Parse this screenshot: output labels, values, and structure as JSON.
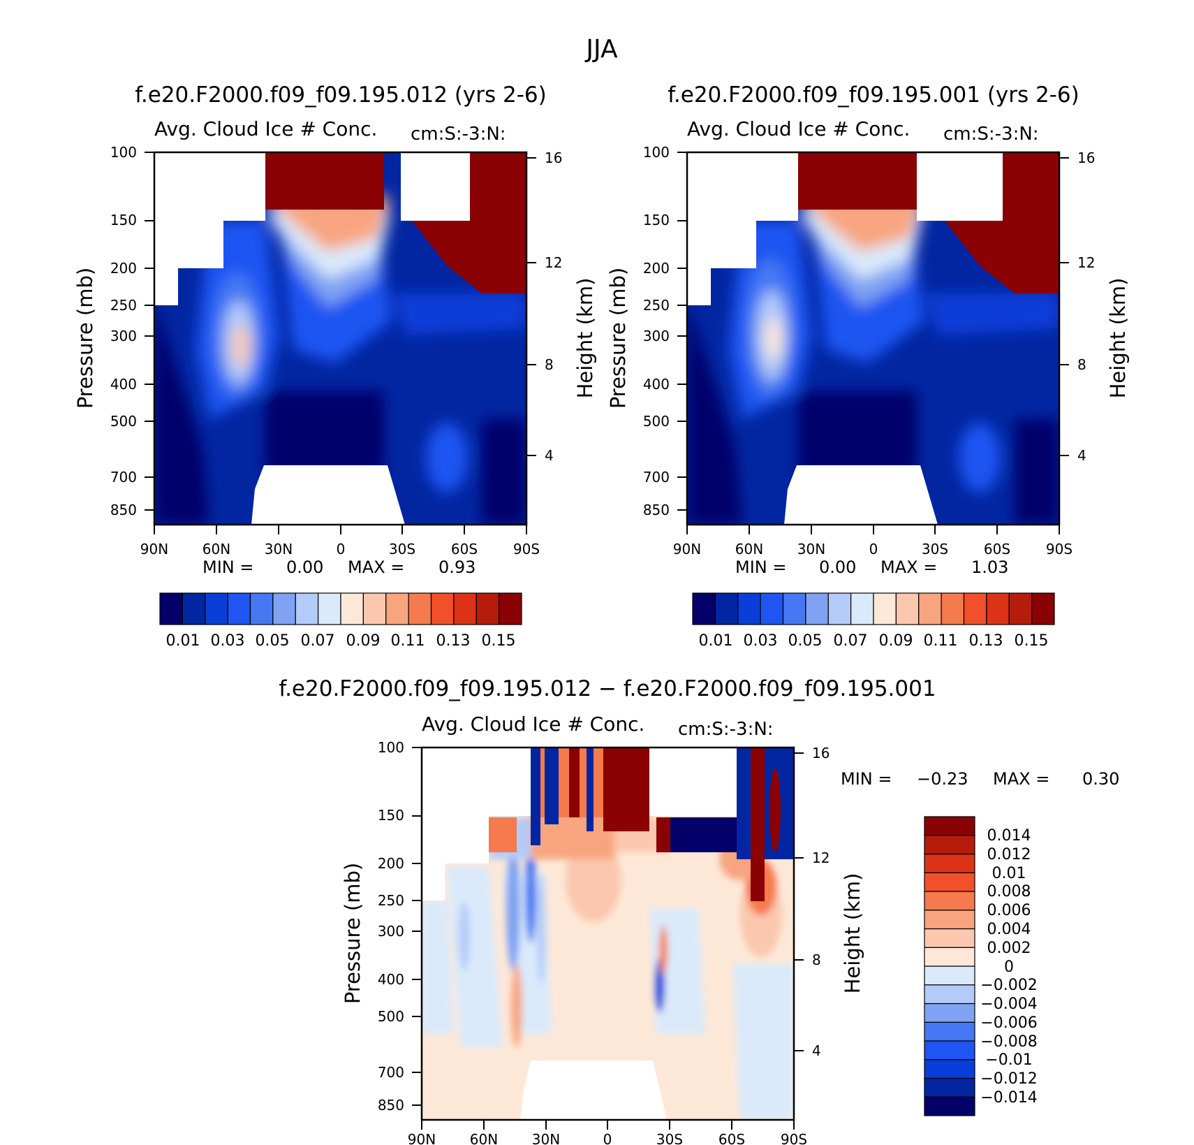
{
  "figure": {
    "title": "JJA"
  },
  "colors": {
    "panel_scale": [
      "#03006a",
      "#0226a2",
      "#0a3ed8",
      "#1f55f2",
      "#4578f2",
      "#7fa2f2",
      "#b3cbf8",
      "#daeafb",
      "#fde8d8",
      "#fbc7ae",
      "#f8a57f",
      "#f57a4e",
      "#f1502a",
      "#dc3316",
      "#b51c0c",
      "#8a0203"
    ],
    "diff_scale": [
      "#03006a",
      "#0226a2",
      "#0a3ed8",
      "#1f55f2",
      "#4578f2",
      "#7fa2f2",
      "#b3cbf8",
      "#daeafb",
      "#fde8d8",
      "#fbc7ae",
      "#f8a57f",
      "#f57a4e",
      "#f1502a",
      "#dc3316",
      "#b51c0c",
      "#8a0203"
    ]
  },
  "chart_data": [
    {
      "type": "heatmap",
      "id": "panel-012",
      "title": "f.e20.F2000.f09_f09.195.012 (yrs 2-6)",
      "variable": "Avg. Cloud Ice # Conc.",
      "units": "cm:S:-3:N:",
      "xlabel": "",
      "ylabel": "Pressure (mb)",
      "ylabel_right": "Height (km)",
      "x_ticks": [
        "90N",
        "60N",
        "30N",
        "0",
        "30S",
        "60S",
        "90S"
      ],
      "y_ticks": [
        "100",
        "150",
        "200",
        "250",
        "300",
        "400",
        "500",
        "700",
        "850"
      ],
      "y_ticks_right": [
        "16",
        "12",
        "8",
        "4"
      ],
      "min_label": "MIN =",
      "min_value": "0.00",
      "max_label": "MAX =",
      "max_value": "0.93",
      "colorbar_labels": [
        "0.01",
        "0.03",
        "0.05",
        "0.07",
        "0.09",
        "0.11",
        "0.13",
        "0.15"
      ],
      "colorbar_orientation": "horizontal"
    },
    {
      "type": "heatmap",
      "id": "panel-001",
      "title": "f.e20.F2000.f09_f09.195.001 (yrs 2-6)",
      "variable": "Avg. Cloud Ice # Conc.",
      "units": "cm:S:-3:N:",
      "xlabel": "",
      "ylabel": "Pressure (mb)",
      "ylabel_right": "Height (km)",
      "x_ticks": [
        "90N",
        "60N",
        "30N",
        "0",
        "30S",
        "60S",
        "90S"
      ],
      "y_ticks": [
        "100",
        "150",
        "200",
        "250",
        "300",
        "400",
        "500",
        "700",
        "850"
      ],
      "y_ticks_right": [
        "16",
        "12",
        "8",
        "4"
      ],
      "min_label": "MIN =",
      "min_value": "0.00",
      "max_label": "MAX =",
      "max_value": "1.03",
      "colorbar_labels": [
        "0.01",
        "0.03",
        "0.05",
        "0.07",
        "0.09",
        "0.11",
        "0.13",
        "0.15"
      ],
      "colorbar_orientation": "horizontal"
    },
    {
      "type": "heatmap",
      "id": "panel-diff",
      "title": "f.e20.F2000.f09_f09.195.012 − f.e20.F2000.f09_f09.195.001",
      "variable": "Avg. Cloud Ice # Conc.",
      "units": "cm:S:-3:N:",
      "xlabel": "",
      "ylabel": "Pressure (mb)",
      "ylabel_right": "Height (km)",
      "x_ticks": [
        "90N",
        "60N",
        "30N",
        "0",
        "30S",
        "60S",
        "90S"
      ],
      "y_ticks": [
        "100",
        "150",
        "200",
        "250",
        "300",
        "400",
        "500",
        "700",
        "850"
      ],
      "y_ticks_right": [
        "16",
        "12",
        "8",
        "4"
      ],
      "min_label": "MIN =",
      "min_value": "−0.23",
      "max_label": "MAX =",
      "max_value": "0.30",
      "colorbar_labels": [
        "0.014",
        "0.012",
        "0.01",
        "0.008",
        "0.006",
        "0.004",
        "0.002",
        "0",
        "−0.002",
        "−0.004",
        "−0.006",
        "−0.008",
        "−0.01",
        "−0.012",
        "−0.014"
      ],
      "colorbar_orientation": "vertical"
    }
  ]
}
